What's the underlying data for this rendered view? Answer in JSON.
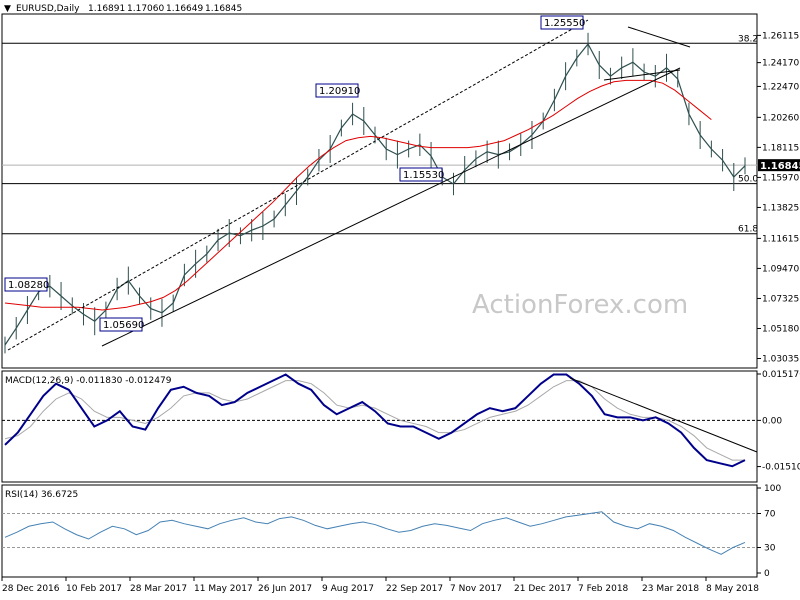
{
  "header": {
    "symbol": "EURUSD,Daily",
    "open": "1.16891",
    "high": "1.17060",
    "low": "1.16649",
    "close": "1.16845"
  },
  "watermark": "ActionForex.com",
  "colors": {
    "candle": "#2f4f4f",
    "sma": "#e00000",
    "macd_main": "#00008b",
    "macd_signal": "#a9a9a9",
    "rsi": "#4682b4",
    "level_line": "#000000",
    "current_price_bg": "#000000"
  },
  "chart_data": [
    {
      "type": "line",
      "title": "EURUSD,Daily",
      "x_ticks": [
        "28 Dec 2016",
        "10 Feb 2017",
        "28 Mar 2017",
        "11 May 2017",
        "26 Jun 2017",
        "9 Aug 2017",
        "22 Sep 2017",
        "7 Nov 2017",
        "21 Dec 2017",
        "7 Feb 2018",
        "23 Mar 2018",
        "8 May 2018"
      ],
      "y_ticks": [
        "1.26115",
        "1.24170",
        "1.22470",
        "1.20260",
        "1.18115",
        "1.15970",
        "1.13825",
        "1.11615",
        "1.09470",
        "1.07325",
        "1.05180",
        "1.03035"
      ],
      "ylim": [
        1.025,
        1.275
      ],
      "current_price": "1.16845",
      "horizontal_levels": [
        {
          "label": "38.2",
          "value": 1.2555
        },
        {
          "label": "50.0",
          "value": 1.1553
        },
        {
          "label": "61.8",
          "value": 1.1195
        }
      ],
      "price_labels": [
        "1.08280",
        "1.05690",
        "1.20910",
        "1.15530",
        "1.25550"
      ],
      "series": [
        {
          "values": [
            1.04,
            1.052,
            1.065,
            1.078,
            1.082,
            1.075,
            1.068,
            1.062,
            1.057,
            1.065,
            1.08,
            1.086,
            1.075,
            1.066,
            1.063,
            1.07,
            1.09,
            1.098,
            1.105,
            1.115,
            1.12,
            1.118,
            1.122,
            1.125,
            1.13,
            1.14,
            1.15,
            1.16,
            1.172,
            1.18,
            1.195,
            1.205,
            1.2,
            1.19,
            1.18,
            1.176,
            1.18,
            1.183,
            1.175,
            1.16,
            1.155,
            1.165,
            1.173,
            1.178,
            1.176,
            1.178,
            1.183,
            1.19,
            1.2,
            1.215,
            1.232,
            1.245,
            1.255,
            1.24,
            1.232,
            1.238,
            1.242,
            1.235,
            1.232,
            1.238,
            1.23,
            1.205,
            1.19,
            1.18,
            1.172,
            1.16,
            1.168
          ]
        },
        {
          "values": [
            1.07,
            1.069,
            1.068,
            1.067,
            1.067,
            1.067,
            1.067,
            1.066,
            1.065,
            1.066,
            1.067,
            1.069,
            1.071,
            1.074,
            1.079,
            1.086,
            1.094,
            1.102,
            1.11,
            1.118,
            1.126,
            1.134,
            1.142,
            1.151,
            1.16,
            1.168,
            1.175,
            1.181,
            1.186,
            1.188,
            1.189,
            1.188,
            1.186,
            1.184,
            1.182,
            1.181,
            1.181,
            1.181,
            1.181,
            1.182,
            1.184,
            1.186,
            1.19,
            1.194,
            1.199,
            1.204,
            1.21,
            1.216,
            1.221,
            1.225,
            1.228,
            1.229,
            1.229,
            1.229,
            1.227,
            1.222,
            1.215,
            1.208,
            1.201
          ]
        }
      ]
    },
    {
      "type": "line",
      "title": "MACD(12,26,9) -0.011830 -0.012479",
      "y_ticks": [
        "0.015176",
        "0.00",
        "-0.015109"
      ],
      "ylim": [
        -0.0195,
        0.0155
      ],
      "series": [
        {
          "values": [
            -0.008,
            -0.004,
            0.002,
            0.008,
            0.012,
            0.01,
            0.004,
            -0.002,
            0.0,
            0.003,
            -0.002,
            -0.003,
            0.004,
            0.01,
            0.011,
            0.009,
            0.008,
            0.005,
            0.006,
            0.009,
            0.011,
            0.013,
            0.015,
            0.012,
            0.01,
            0.005,
            0.002,
            0.004,
            0.006,
            0.003,
            -0.001,
            -0.002,
            -0.002,
            -0.004,
            -0.006,
            -0.004,
            -0.001,
            0.002,
            0.004,
            0.003,
            0.004,
            0.008,
            0.012,
            0.015,
            0.015,
            0.012,
            0.008,
            0.002,
            0.001,
            0.001,
            0.0,
            0.001,
            -0.001,
            -0.004,
            -0.009,
            -0.013,
            -0.014,
            -0.015,
            -0.013
          ]
        },
        {
          "values": [
            -0.006,
            -0.005,
            -0.002,
            0.003,
            0.007,
            0.009,
            0.007,
            0.003,
            0.001,
            0.001,
            0.0,
            -0.001,
            0.001,
            0.004,
            0.008,
            0.009,
            0.009,
            0.007,
            0.006,
            0.007,
            0.009,
            0.011,
            0.013,
            0.013,
            0.012,
            0.009,
            0.005,
            0.004,
            0.005,
            0.004,
            0.002,
            0.0,
            -0.001,
            -0.002,
            -0.004,
            -0.004,
            -0.003,
            -0.001,
            0.001,
            0.002,
            0.003,
            0.005,
            0.008,
            0.011,
            0.013,
            0.013,
            0.011,
            0.007,
            0.004,
            0.002,
            0.001,
            0.001,
            0.0,
            -0.002,
            -0.005,
            -0.009,
            -0.011,
            -0.013,
            -0.013
          ]
        }
      ]
    },
    {
      "type": "line",
      "title": "RSI(14) 36.6725",
      "y_ticks": [
        "100",
        "70",
        "30",
        "0"
      ],
      "ylim": [
        0,
        100
      ],
      "series": [
        {
          "values": [
            42,
            48,
            55,
            58,
            60,
            52,
            45,
            40,
            48,
            55,
            52,
            45,
            50,
            60,
            62,
            58,
            55,
            52,
            58,
            62,
            65,
            60,
            58,
            64,
            66,
            62,
            56,
            52,
            55,
            58,
            60,
            57,
            52,
            48,
            50,
            55,
            58,
            56,
            53,
            50,
            58,
            62,
            65,
            60,
            55,
            58,
            62,
            66,
            68,
            70,
            72,
            60,
            55,
            52,
            58,
            55,
            50,
            42,
            35,
            28,
            22,
            30,
            36
          ]
        }
      ]
    }
  ]
}
